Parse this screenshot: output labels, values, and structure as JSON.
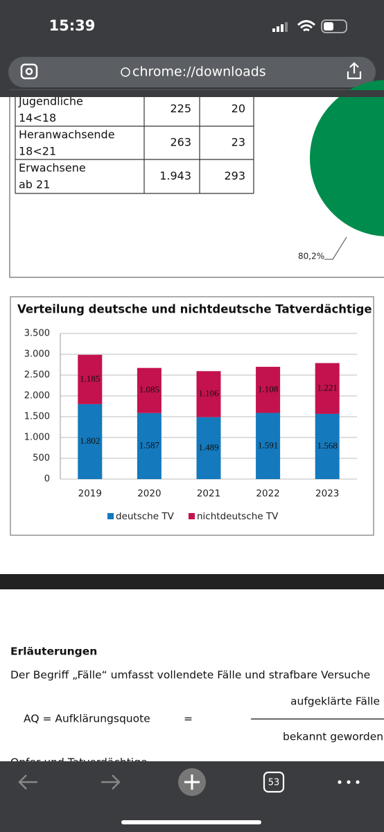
{
  "status_bar": {
    "time": "15:39"
  },
  "address_bar": {
    "url": "chrome://downloads"
  },
  "table": {
    "rows": [
      {
        "label": "Jugendliche",
        "sublabel": "14<18",
        "cells": [
          "225",
          "20"
        ]
      },
      {
        "label": "Heranwachsende",
        "sublabel": "18<21",
        "cells": [
          "263",
          "23"
        ]
      },
      {
        "label": "Erwachsene",
        "sublabel": "ab 21",
        "cells": [
          "1.943",
          "293"
        ]
      }
    ]
  },
  "pie_label": "80,2%",
  "chart_data": {
    "type": "bar",
    "stacked": true,
    "title": "Verteilung deutsche und nichtdeutsche Tatverdächtige",
    "categories": [
      "2019",
      "2020",
      "2021",
      "2022",
      "2023"
    ],
    "series": [
      {
        "name": "deutsche TV",
        "color": "#1479bd",
        "values": [
          1802,
          1587,
          1489,
          1591,
          1568
        ],
        "value_labels": [
          "1.802",
          "1.587",
          "1.489",
          "1.591",
          "1.568"
        ]
      },
      {
        "name": "nichtdeutsche TV",
        "color": "#c3124d",
        "values": [
          1185,
          1085,
          1106,
          1108,
          1221
        ],
        "value_labels": [
          "1.185",
          "1.085",
          "1.106",
          "1.108",
          "1.221"
        ]
      }
    ],
    "ylim": [
      0,
      3500
    ],
    "yticks": [
      0,
      500,
      {
        "value": 1000,
        "label": "1.000"
      },
      {
        "value": 1500,
        "label": "1.500"
      },
      {
        "value": 2000,
        "label": "2.000"
      },
      {
        "value": 2500,
        "label": "2.500"
      },
      {
        "value": 3000,
        "label": "3.000"
      },
      {
        "value": 3500,
        "label": "3.500"
      }
    ],
    "grid": true,
    "legend": "bottom"
  },
  "notes": {
    "heading": "Erläuterungen",
    "text": "Der Begriff „Fälle“ umfasst vollendete Fälle und strafbare Versuche",
    "formula_left": "AQ = Aufklärungsquote",
    "formula_eq": "=",
    "numerator": "aufgeklärte Fälle",
    "denominator": "bekannt geworden",
    "next_heading": "Opfer und Tatverdächtige"
  },
  "toolbar": {
    "tab_count": "53"
  }
}
